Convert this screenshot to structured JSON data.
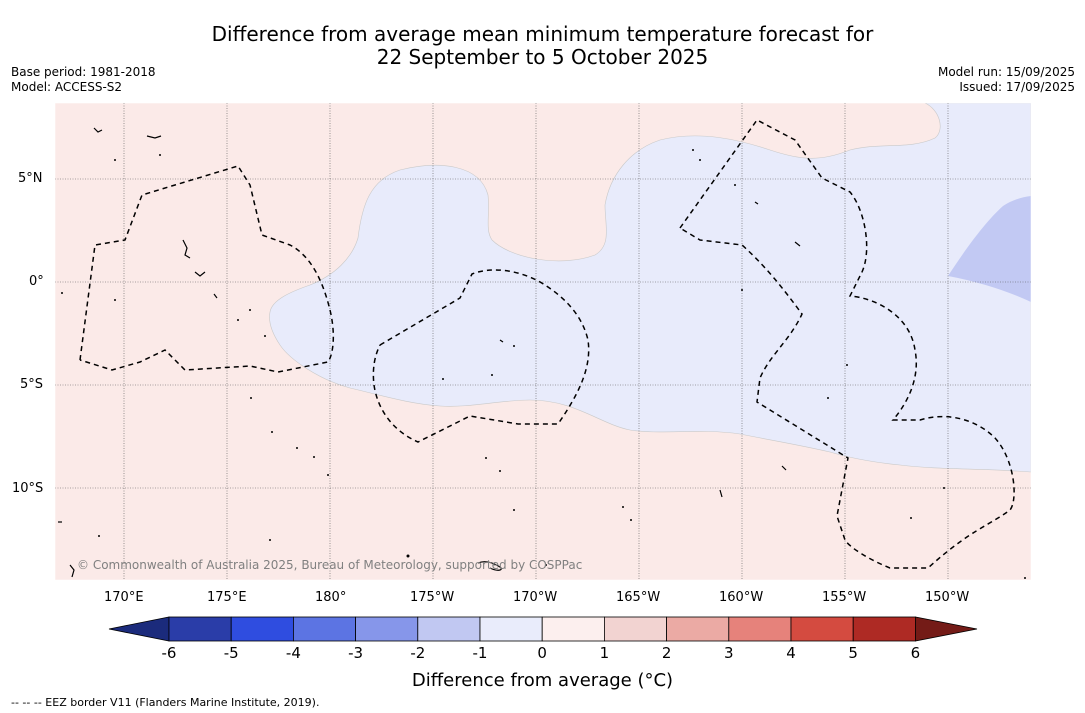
{
  "title": {
    "line1": "Difference from average mean minimum temperature forecast for",
    "line2": "22 September to 5 October 2025"
  },
  "meta": {
    "base_period": "Base period: 1981-2018",
    "model": "Model: ACCESS-S2",
    "model_run": "Model run: 15/09/2025",
    "issued": "Issued: 17/09/2025"
  },
  "map": {
    "lat_ticks": [
      "5°N",
      "0°",
      "5°S",
      "10°S"
    ],
    "lon_ticks": [
      "170°E",
      "175°E",
      "180°",
      "175°W",
      "170°W",
      "165°W",
      "160°W",
      "155°W",
      "150°W"
    ],
    "copyright": "© Commonwealth of Australia 2025, Bureau of Meteorology, supported by COSPPac",
    "colors": {
      "warm_0_1": "#fbeae8",
      "cool_m1_0": "#e8ebfb",
      "cool_m2_m1": "#c2c9f3",
      "eez_border": "#000000"
    }
  },
  "colorbar": {
    "title": "Difference from average (°C)",
    "labels": [
      "-6",
      "-5",
      "-4",
      "-3",
      "-2",
      "-1",
      "0",
      "1",
      "2",
      "3",
      "4",
      "5",
      "6"
    ],
    "colors": [
      "#1b2b7c",
      "#2a3da8",
      "#2f4de0",
      "#5c74e3",
      "#8696ea",
      "#c1c8f2",
      "#e9ecfb",
      "#fcefee",
      "#f2d3d1",
      "#ebaaa4",
      "#e6827b",
      "#d44b40",
      "#ae2a24",
      "#741b17"
    ]
  },
  "footer": "-- -- -- EEZ border V11 (Flanders Marine Institute, 2019)."
}
